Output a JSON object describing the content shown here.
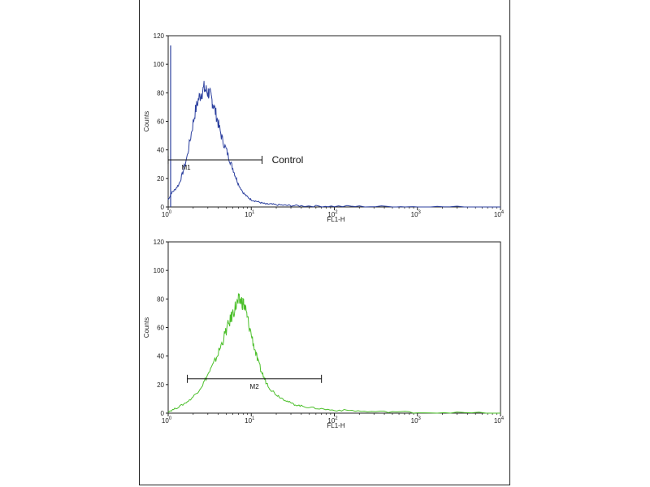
{
  "chart_data": [
    {
      "type": "line",
      "xscale": "log",
      "xlim": [
        1,
        10000
      ],
      "ylim": [
        0,
        120
      ],
      "yticks": [
        0,
        20,
        40,
        60,
        80,
        100,
        120
      ],
      "xticks": [
        {
          "value": 1,
          "base": "10",
          "exp": "0"
        },
        {
          "value": 10,
          "base": "10",
          "exp": "1"
        },
        {
          "value": 100,
          "base": "10",
          "exp": "2"
        },
        {
          "value": 1000,
          "base": "10",
          "exp": "3"
        },
        {
          "value": 10000,
          "base": "10",
          "exp": "4"
        }
      ],
      "xlabel": "FL1-H",
      "ylabel": "Counts",
      "color": "#2b3f9e",
      "series": [
        {
          "x": [
            1,
            1.1,
            1.2,
            1.35,
            1.5,
            1.7,
            1.9,
            2.1,
            2.3,
            2.5,
            2.7,
            2.9,
            3.1,
            3.3,
            3.5,
            3.8,
            4.1,
            4.5,
            5,
            5.5,
            6,
            6.5,
            7,
            8,
            9,
            10,
            11.5,
            13,
            15,
            17,
            20,
            25,
            30,
            40,
            60,
            100,
            200,
            500,
            1000,
            3000,
            10000
          ],
          "y": [
            5,
            10,
            12,
            16,
            24,
            36,
            52,
            66,
            75,
            80,
            83,
            81,
            80,
            76,
            72,
            64,
            56,
            47,
            40,
            33,
            27,
            21,
            16,
            10,
            7,
            5,
            4,
            3,
            2,
            2,
            1.5,
            1.2,
            1,
            0.8,
            0.6,
            0.5,
            0.4,
            0.3,
            0.2,
            0.1,
            0
          ]
        }
      ],
      "gate": {
        "label": "M1",
        "x_start": 1,
        "x_end": 13.5,
        "y": 33
      },
      "annotation": "Control"
    },
    {
      "type": "line",
      "xscale": "log",
      "xlim": [
        1,
        10000
      ],
      "ylim": [
        0,
        120
      ],
      "yticks": [
        0,
        20,
        40,
        60,
        80,
        100,
        120
      ],
      "xticks": [
        {
          "value": 1,
          "base": "10",
          "exp": "0"
        },
        {
          "value": 10,
          "base": "10",
          "exp": "1"
        },
        {
          "value": 100,
          "base": "10",
          "exp": "2"
        },
        {
          "value": 1000,
          "base": "10",
          "exp": "3"
        },
        {
          "value": 10000,
          "base": "10",
          "exp": "4"
        }
      ],
      "xlabel": "FL1-H",
      "ylabel": "Counts",
      "color": "#4bbf2a",
      "series": [
        {
          "x": [
            1,
            1.2,
            1.5,
            1.8,
            2.2,
            2.6,
            3,
            3.5,
            4,
            4.5,
            5,
            5.5,
            6,
            6.5,
            7,
            7.5,
            8,
            8.5,
            9,
            10,
            11,
            12,
            13.5,
            15,
            17,
            20,
            24,
            28,
            33,
            40,
            50,
            70,
            100,
            150,
            250,
            500,
            1000,
            3000,
            10000
          ],
          "y": [
            1,
            3,
            6,
            9,
            14,
            20,
            27,
            34,
            42,
            50,
            58,
            64,
            70,
            75,
            78,
            79,
            77,
            73,
            66,
            55,
            45,
            36,
            28,
            22,
            17,
            13,
            10,
            8,
            6,
            5,
            4,
            3,
            2,
            2,
            1,
            1,
            0.5,
            0.3,
            0
          ]
        }
      ],
      "gate": {
        "label": "M2",
        "x_start": 1.7,
        "x_end": 70,
        "y": 24
      }
    }
  ]
}
